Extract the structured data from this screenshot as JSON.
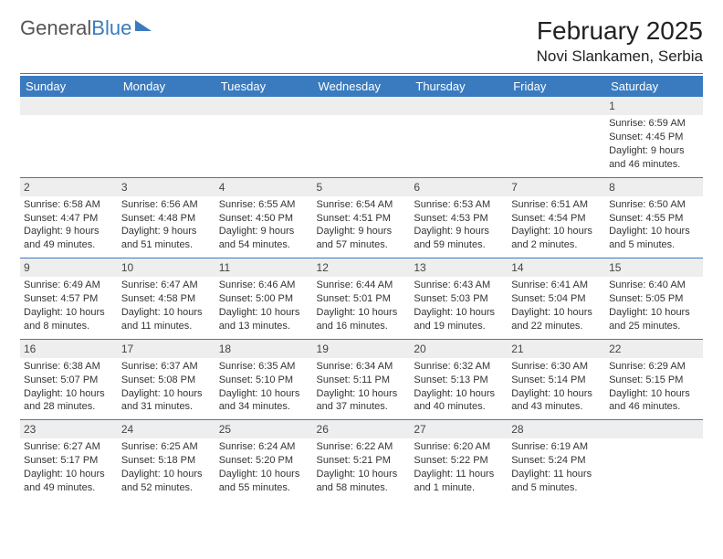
{
  "brand": {
    "part1": "General",
    "part2": "Blue"
  },
  "title": "February 2025",
  "location": "Novi Slankamen, Serbia",
  "colors": {
    "header_bg": "#3a7bbf",
    "header_text": "#ffffff",
    "daynum_bg": "#eeeeee",
    "text": "#333333",
    "page_bg": "#ffffff"
  },
  "fonts": {
    "title_size": 28,
    "location_size": 17,
    "header_size": 13,
    "cell_size": 11
  },
  "day_headers": [
    "Sunday",
    "Monday",
    "Tuesday",
    "Wednesday",
    "Thursday",
    "Friday",
    "Saturday"
  ],
  "weeks": [
    [
      {
        "day": "",
        "sunrise": "",
        "sunset": "",
        "daylight": ""
      },
      {
        "day": "",
        "sunrise": "",
        "sunset": "",
        "daylight": ""
      },
      {
        "day": "",
        "sunrise": "",
        "sunset": "",
        "daylight": ""
      },
      {
        "day": "",
        "sunrise": "",
        "sunset": "",
        "daylight": ""
      },
      {
        "day": "",
        "sunrise": "",
        "sunset": "",
        "daylight": ""
      },
      {
        "day": "",
        "sunrise": "",
        "sunset": "",
        "daylight": ""
      },
      {
        "day": "1",
        "sunrise": "Sunrise: 6:59 AM",
        "sunset": "Sunset: 4:45 PM",
        "daylight": "Daylight: 9 hours and 46 minutes."
      }
    ],
    [
      {
        "day": "2",
        "sunrise": "Sunrise: 6:58 AM",
        "sunset": "Sunset: 4:47 PM",
        "daylight": "Daylight: 9 hours and 49 minutes."
      },
      {
        "day": "3",
        "sunrise": "Sunrise: 6:56 AM",
        "sunset": "Sunset: 4:48 PM",
        "daylight": "Daylight: 9 hours and 51 minutes."
      },
      {
        "day": "4",
        "sunrise": "Sunrise: 6:55 AM",
        "sunset": "Sunset: 4:50 PM",
        "daylight": "Daylight: 9 hours and 54 minutes."
      },
      {
        "day": "5",
        "sunrise": "Sunrise: 6:54 AM",
        "sunset": "Sunset: 4:51 PM",
        "daylight": "Daylight: 9 hours and 57 minutes."
      },
      {
        "day": "6",
        "sunrise": "Sunrise: 6:53 AM",
        "sunset": "Sunset: 4:53 PM",
        "daylight": "Daylight: 9 hours and 59 minutes."
      },
      {
        "day": "7",
        "sunrise": "Sunrise: 6:51 AM",
        "sunset": "Sunset: 4:54 PM",
        "daylight": "Daylight: 10 hours and 2 minutes."
      },
      {
        "day": "8",
        "sunrise": "Sunrise: 6:50 AM",
        "sunset": "Sunset: 4:55 PM",
        "daylight": "Daylight: 10 hours and 5 minutes."
      }
    ],
    [
      {
        "day": "9",
        "sunrise": "Sunrise: 6:49 AM",
        "sunset": "Sunset: 4:57 PM",
        "daylight": "Daylight: 10 hours and 8 minutes."
      },
      {
        "day": "10",
        "sunrise": "Sunrise: 6:47 AM",
        "sunset": "Sunset: 4:58 PM",
        "daylight": "Daylight: 10 hours and 11 minutes."
      },
      {
        "day": "11",
        "sunrise": "Sunrise: 6:46 AM",
        "sunset": "Sunset: 5:00 PM",
        "daylight": "Daylight: 10 hours and 13 minutes."
      },
      {
        "day": "12",
        "sunrise": "Sunrise: 6:44 AM",
        "sunset": "Sunset: 5:01 PM",
        "daylight": "Daylight: 10 hours and 16 minutes."
      },
      {
        "day": "13",
        "sunrise": "Sunrise: 6:43 AM",
        "sunset": "Sunset: 5:03 PM",
        "daylight": "Daylight: 10 hours and 19 minutes."
      },
      {
        "day": "14",
        "sunrise": "Sunrise: 6:41 AM",
        "sunset": "Sunset: 5:04 PM",
        "daylight": "Daylight: 10 hours and 22 minutes."
      },
      {
        "day": "15",
        "sunrise": "Sunrise: 6:40 AM",
        "sunset": "Sunset: 5:05 PM",
        "daylight": "Daylight: 10 hours and 25 minutes."
      }
    ],
    [
      {
        "day": "16",
        "sunrise": "Sunrise: 6:38 AM",
        "sunset": "Sunset: 5:07 PM",
        "daylight": "Daylight: 10 hours and 28 minutes."
      },
      {
        "day": "17",
        "sunrise": "Sunrise: 6:37 AM",
        "sunset": "Sunset: 5:08 PM",
        "daylight": "Daylight: 10 hours and 31 minutes."
      },
      {
        "day": "18",
        "sunrise": "Sunrise: 6:35 AM",
        "sunset": "Sunset: 5:10 PM",
        "daylight": "Daylight: 10 hours and 34 minutes."
      },
      {
        "day": "19",
        "sunrise": "Sunrise: 6:34 AM",
        "sunset": "Sunset: 5:11 PM",
        "daylight": "Daylight: 10 hours and 37 minutes."
      },
      {
        "day": "20",
        "sunrise": "Sunrise: 6:32 AM",
        "sunset": "Sunset: 5:13 PM",
        "daylight": "Daylight: 10 hours and 40 minutes."
      },
      {
        "day": "21",
        "sunrise": "Sunrise: 6:30 AM",
        "sunset": "Sunset: 5:14 PM",
        "daylight": "Daylight: 10 hours and 43 minutes."
      },
      {
        "day": "22",
        "sunrise": "Sunrise: 6:29 AM",
        "sunset": "Sunset: 5:15 PM",
        "daylight": "Daylight: 10 hours and 46 minutes."
      }
    ],
    [
      {
        "day": "23",
        "sunrise": "Sunrise: 6:27 AM",
        "sunset": "Sunset: 5:17 PM",
        "daylight": "Daylight: 10 hours and 49 minutes."
      },
      {
        "day": "24",
        "sunrise": "Sunrise: 6:25 AM",
        "sunset": "Sunset: 5:18 PM",
        "daylight": "Daylight: 10 hours and 52 minutes."
      },
      {
        "day": "25",
        "sunrise": "Sunrise: 6:24 AM",
        "sunset": "Sunset: 5:20 PM",
        "daylight": "Daylight: 10 hours and 55 minutes."
      },
      {
        "day": "26",
        "sunrise": "Sunrise: 6:22 AM",
        "sunset": "Sunset: 5:21 PM",
        "daylight": "Daylight: 10 hours and 58 minutes."
      },
      {
        "day": "27",
        "sunrise": "Sunrise: 6:20 AM",
        "sunset": "Sunset: 5:22 PM",
        "daylight": "Daylight: 11 hours and 1 minute."
      },
      {
        "day": "28",
        "sunrise": "Sunrise: 6:19 AM",
        "sunset": "Sunset: 5:24 PM",
        "daylight": "Daylight: 11 hours and 5 minutes."
      },
      {
        "day": "",
        "sunrise": "",
        "sunset": "",
        "daylight": ""
      }
    ]
  ]
}
